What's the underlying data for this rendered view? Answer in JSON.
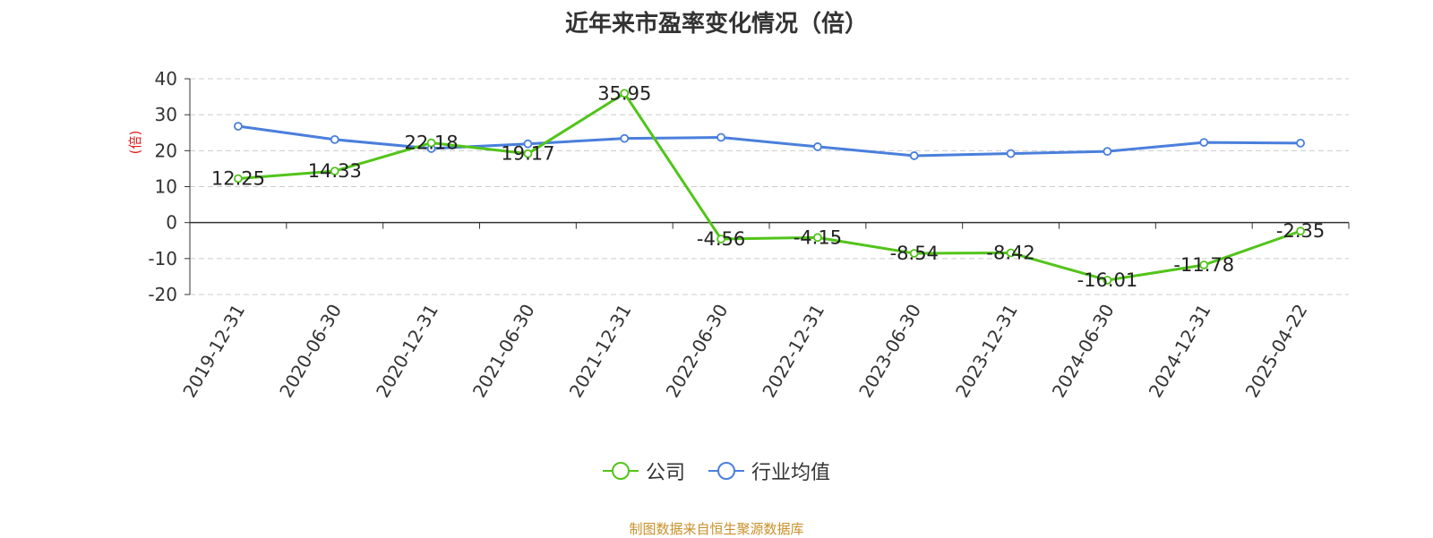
{
  "chart_data": {
    "type": "line",
    "title": "近年来市盈率变化情况（倍）",
    "ylabel": "(倍)",
    "ylim": [
      -20,
      40
    ],
    "yticks": [
      40,
      30,
      20,
      10,
      0,
      -10,
      -20
    ],
    "categories": [
      "2019-12-31",
      "2020-06-30",
      "2020-12-31",
      "2021-06-30",
      "2021-12-31",
      "2022-06-30",
      "2022-12-31",
      "2023-06-30",
      "2023-12-31",
      "2024-06-30",
      "2024-12-31",
      "2025-04-22"
    ],
    "series": [
      {
        "name": "公司",
        "color": "#52c41a",
        "labels": true,
        "values": [
          12.25,
          14.33,
          22.18,
          19.17,
          35.95,
          -4.56,
          -4.15,
          -8.54,
          -8.42,
          -16.01,
          -11.78,
          -2.35
        ]
      },
      {
        "name": "行业均值",
        "color": "#4a7fdc",
        "labels": false,
        "values": [
          26.8,
          23.1,
          20.6,
          21.9,
          23.4,
          23.7,
          21.1,
          18.6,
          19.2,
          19.8,
          22.3,
          22.1
        ]
      }
    ],
    "grid": true,
    "legend_position": "bottom"
  },
  "source_text": "制图数据来自恒生聚源数据库",
  "colors": {
    "source": "#c8902a",
    "ylabel": "#e02020",
    "grid": "#cccccc",
    "axis": "#333333"
  }
}
